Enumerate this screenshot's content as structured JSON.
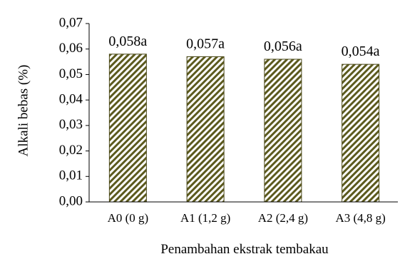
{
  "chart_data": {
    "type": "bar",
    "categories": [
      "A0 (0 g)",
      "A1 (1,2 g)",
      "A2 (2,4 g)",
      "A3 (4,8 g)"
    ],
    "values": [
      0.058,
      0.057,
      0.056,
      0.054
    ],
    "data_labels": [
      "0,058a",
      "0,057a",
      "0,056a",
      "0,054a"
    ],
    "title": "",
    "xlabel": "Penambahan ekstrak tembakau",
    "ylabel": "Alkali bebas (%)",
    "ylim": [
      0,
      0.07
    ],
    "yticks": [
      0,
      0.01,
      0.02,
      0.03,
      0.04,
      0.05,
      0.06,
      0.07
    ],
    "ytick_labels": [
      "0,00",
      "0,01",
      "0,02",
      "0,03",
      "0,04",
      "0,05",
      "0,06",
      "0,07"
    ],
    "grid": false,
    "legend": "none",
    "bar_pattern": "diagonal-hatch",
    "bar_colors": {
      "stripe_dark": "#5c5a1e",
      "stripe_light": "#ffffff",
      "outline": "#4a4818"
    }
  }
}
